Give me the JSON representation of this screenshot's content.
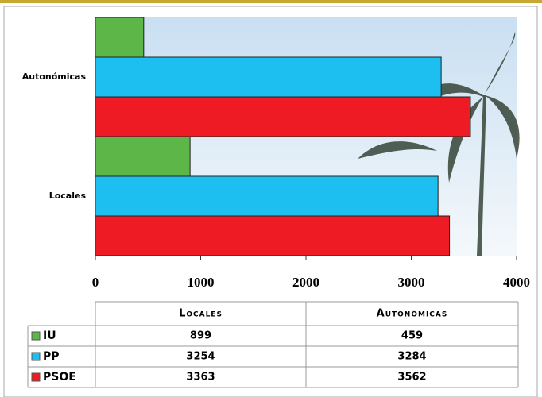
{
  "chart_data": {
    "type": "hbar",
    "categories": [
      "Locales",
      "Autonómicas"
    ],
    "series": [
      {
        "name": "IU",
        "color": "#5cb748",
        "values": [
          899,
          459
        ]
      },
      {
        "name": "PP",
        "color": "#1cbff0",
        "values": [
          3254,
          3284
        ]
      },
      {
        "name": "PSOE",
        "color": "#ee1b24",
        "values": [
          3363,
          3562
        ]
      }
    ],
    "xlim": [
      0,
      4000
    ],
    "xticks": [
      0,
      1000,
      2000,
      3000,
      4000
    ]
  }
}
